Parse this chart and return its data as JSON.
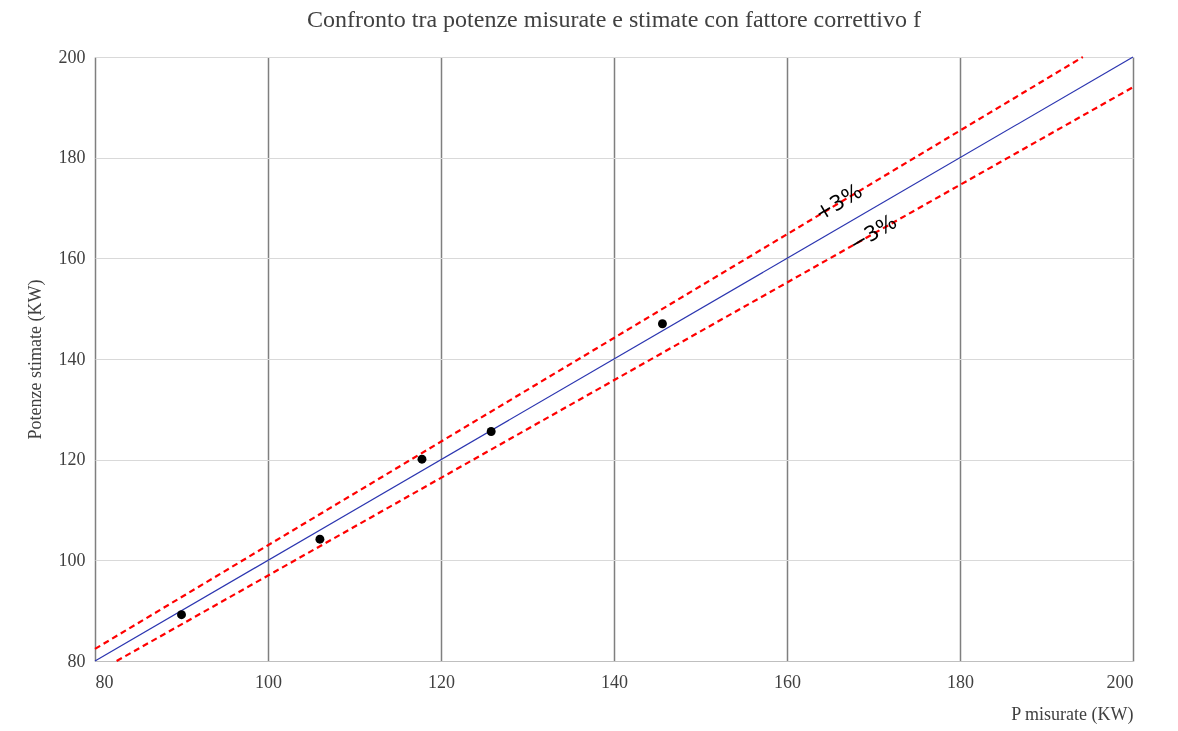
{
  "chart_data": {
    "type": "scatter",
    "title": "Confronto tra potenze misurate e stimate con fattore correttivo f",
    "xlabel": "P misurate (KW)",
    "ylabel": "Potenze stimate (KW)",
    "xlim": [
      80,
      200
    ],
    "ylim": [
      80,
      200
    ],
    "xticks": [
      80,
      100,
      120,
      140,
      160,
      180,
      200
    ],
    "yticks": [
      80,
      100,
      120,
      140,
      160,
      180,
      200
    ],
    "grid": true,
    "series": [
      {
        "type": "line",
        "color": "#2b35b0",
        "line_style": "solid",
        "marker": "none",
        "x": [
          80,
          200
        ],
        "values": [
          80,
          200
        ]
      },
      {
        "type": "line",
        "color": "#ff0000",
        "line_style": "dashed",
        "marker": "none",
        "x": [
          80,
          194.2
        ],
        "values": [
          82.4,
          200
        ]
      },
      {
        "type": "line",
        "color": "#ff0000",
        "line_style": "dashed",
        "marker": "none",
        "x": [
          82.5,
          200
        ],
        "values": [
          80,
          194
        ]
      },
      {
        "color": "#000000",
        "marker": "circle",
        "x": [
          90,
          106,
          117.8,
          125.8,
          145.6
        ],
        "values": [
          89.2,
          104.2,
          120.1,
          125.6,
          147
        ]
      }
    ],
    "annotations": [
      {
        "text": "+3%",
        "x": 166,
        "y": 171
      },
      {
        "text": "−3%",
        "x": 170,
        "y": 164.9
      }
    ]
  }
}
